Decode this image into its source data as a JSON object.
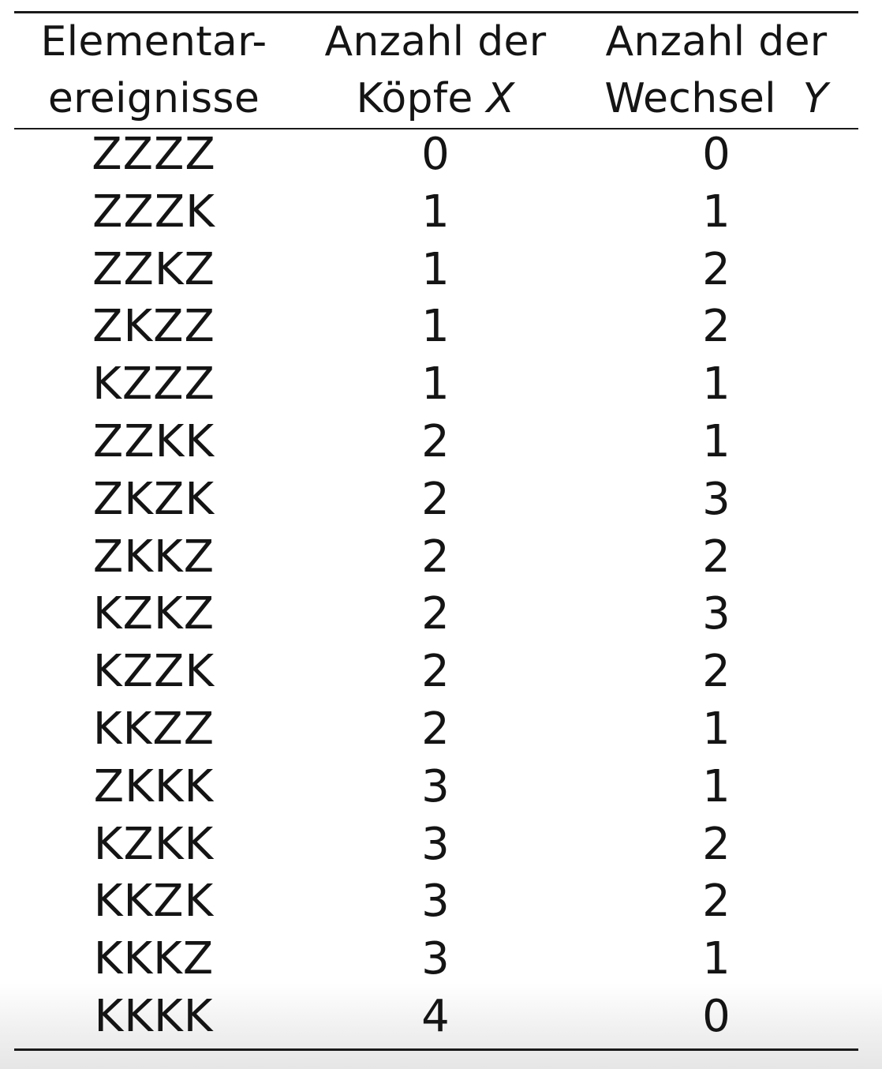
{
  "table": {
    "headers": [
      {
        "line1": "Elementar-",
        "line2": "ereignisse",
        "var": ""
      },
      {
        "line1": "Anzahl der",
        "line2": "Köpfe",
        "var": "X"
      },
      {
        "line1": "Anzahl der",
        "line2": "Wechsel",
        "var": "Y"
      }
    ],
    "rows": [
      {
        "event": "ZZZZ",
        "x": "0",
        "y": "0"
      },
      {
        "event": "ZZZK",
        "x": "1",
        "y": "1"
      },
      {
        "event": "ZZKZ",
        "x": "1",
        "y": "2"
      },
      {
        "event": "ZKZZ",
        "x": "1",
        "y": "2"
      },
      {
        "event": "KZZZ",
        "x": "1",
        "y": "1"
      },
      {
        "event": "ZZKK",
        "x": "2",
        "y": "1"
      },
      {
        "event": "ZKZK",
        "x": "2",
        "y": "3"
      },
      {
        "event": "ZKKZ",
        "x": "2",
        "y": "2"
      },
      {
        "event": "KZKZ",
        "x": "2",
        "y": "3"
      },
      {
        "event": "KZZK",
        "x": "2",
        "y": "2"
      },
      {
        "event": "KKZZ",
        "x": "2",
        "y": "1"
      },
      {
        "event": "ZKKK",
        "x": "3",
        "y": "1"
      },
      {
        "event": "KZKK",
        "x": "3",
        "y": "2"
      },
      {
        "event": "KKZK",
        "x": "3",
        "y": "2"
      },
      {
        "event": "KKKZ",
        "x": "3",
        "y": "1"
      },
      {
        "event": "KKKK",
        "x": "4",
        "y": "0"
      }
    ]
  }
}
